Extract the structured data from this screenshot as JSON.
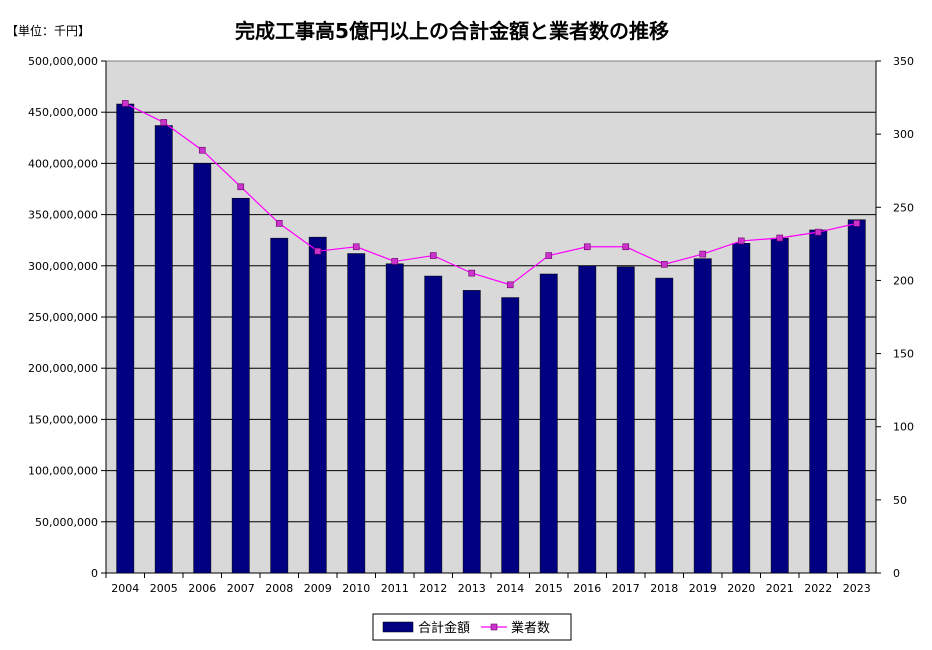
{
  "unit_label": "【単位：千円】",
  "chart_data": {
    "type": "bar+line",
    "title": "完成工事高5億円以上の合計金額と業者数の推移",
    "categories": [
      "2004",
      "2005",
      "2006",
      "2007",
      "2008",
      "2009",
      "2010",
      "2011",
      "2012",
      "2013",
      "2014",
      "2015",
      "2016",
      "2017",
      "2018",
      "2019",
      "2020",
      "2021",
      "2022",
      "2023"
    ],
    "series": [
      {
        "name": "合計金額",
        "type": "bar",
        "axis": "left",
        "color": "#000080",
        "values": [
          458000000,
          437000000,
          400000000,
          366000000,
          327000000,
          328000000,
          312000000,
          302000000,
          290000000,
          276000000,
          269000000,
          292000000,
          300000000,
          299000000,
          288000000,
          307000000,
          322000000,
          327000000,
          335000000,
          345000000
        ]
      },
      {
        "name": "業者数",
        "type": "line",
        "axis": "right",
        "color": "#ff00ff",
        "marker_color": "#cc33cc",
        "values": [
          321,
          308,
          289,
          264,
          239,
          220,
          223,
          213,
          217,
          205,
          197,
          217,
          223,
          223,
          211,
          218,
          227,
          229,
          233,
          239
        ]
      }
    ],
    "y_left": {
      "min": 0,
      "max": 500000000,
      "step": 50000000,
      "ticks": [
        "0",
        "50,000,000",
        "100,000,000",
        "150,000,000",
        "200,000,000",
        "250,000,000",
        "300,000,000",
        "350,000,000",
        "400,000,000",
        "450,000,000",
        "500,000,000"
      ]
    },
    "y_right": {
      "min": 0,
      "max": 350,
      "step": 50,
      "ticks": [
        "0",
        "50",
        "100",
        "150",
        "200",
        "250",
        "300",
        "350"
      ]
    },
    "grid": true,
    "legend_position": "bottom",
    "plot_background": "#d9d9d9"
  }
}
